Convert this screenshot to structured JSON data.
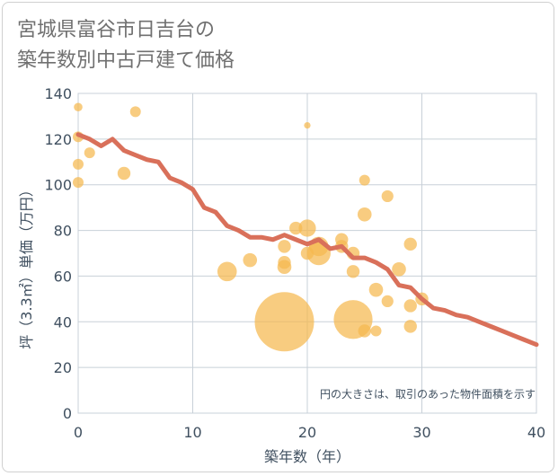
{
  "chart_data": {
    "type": "scatter",
    "title_lines": [
      "宮城県富谷市日吉台の",
      "築年数別中古戸建て価格"
    ],
    "xlabel": "築年数（年）",
    "ylabel": "坪（3.3㎡）単価（万円）",
    "xlim": [
      0,
      40
    ],
    "ylim": [
      0,
      140
    ],
    "x_ticks": [
      0,
      10,
      20,
      30,
      40
    ],
    "y_ticks": [
      0,
      20,
      40,
      60,
      80,
      100,
      120,
      140
    ],
    "note": "円の大きさは、取引のあった物件面積を示す",
    "grid": true,
    "colors": {
      "bubble": "#f5b94f",
      "line": "#d9705a",
      "grid": "#c8d0d8",
      "text": "#405060"
    },
    "bubbles": [
      {
        "x": 0,
        "y": 134,
        "size": 8
      },
      {
        "x": 0,
        "y": 121,
        "size": 10
      },
      {
        "x": 0,
        "y": 109,
        "size": 10
      },
      {
        "x": 0,
        "y": 101,
        "size": 10
      },
      {
        "x": 1,
        "y": 114,
        "size": 10
      },
      {
        "x": 4,
        "y": 105,
        "size": 12
      },
      {
        "x": 5,
        "y": 132,
        "size": 10
      },
      {
        "x": 13,
        "y": 62,
        "size": 18
      },
      {
        "x": 15,
        "y": 67,
        "size": 13
      },
      {
        "x": 18,
        "y": 73,
        "size": 12
      },
      {
        "x": 18,
        "y": 66,
        "size": 12
      },
      {
        "x": 18,
        "y": 64,
        "size": 13
      },
      {
        "x": 18,
        "y": 40,
        "size": 55
      },
      {
        "x": 19,
        "y": 81,
        "size": 12
      },
      {
        "x": 20,
        "y": 126,
        "size": 6
      },
      {
        "x": 20,
        "y": 81,
        "size": 16
      },
      {
        "x": 20,
        "y": 70,
        "size": 12
      },
      {
        "x": 21,
        "y": 73,
        "size": 18
      },
      {
        "x": 21,
        "y": 70,
        "size": 22
      },
      {
        "x": 23,
        "y": 76,
        "size": 12
      },
      {
        "x": 23,
        "y": 73,
        "size": 12
      },
      {
        "x": 24,
        "y": 70,
        "size": 12
      },
      {
        "x": 24,
        "y": 62,
        "size": 12
      },
      {
        "x": 24,
        "y": 41,
        "size": 36
      },
      {
        "x": 25,
        "y": 102,
        "size": 10
      },
      {
        "x": 25,
        "y": 87,
        "size": 13
      },
      {
        "x": 25,
        "y": 36,
        "size": 12
      },
      {
        "x": 26,
        "y": 54,
        "size": 13
      },
      {
        "x": 26,
        "y": 36,
        "size": 10
      },
      {
        "x": 27,
        "y": 95,
        "size": 11
      },
      {
        "x": 27,
        "y": 49,
        "size": 11
      },
      {
        "x": 28,
        "y": 63,
        "size": 13
      },
      {
        "x": 29,
        "y": 74,
        "size": 12
      },
      {
        "x": 29,
        "y": 47,
        "size": 12
      },
      {
        "x": 29,
        "y": 38,
        "size": 12
      },
      {
        "x": 30,
        "y": 50,
        "size": 12
      }
    ],
    "trend": {
      "x": [
        0,
        1,
        2,
        3,
        4,
        5,
        6,
        7,
        8,
        9,
        10,
        11,
        12,
        13,
        14,
        15,
        16,
        17,
        18,
        19,
        20,
        21,
        22,
        23,
        24,
        25,
        26,
        27,
        28,
        29,
        30,
        31,
        32,
        33,
        34,
        35,
        36,
        37,
        38,
        39,
        40
      ],
      "y": [
        122,
        120,
        117,
        120,
        115,
        113,
        111,
        110,
        103,
        101,
        98,
        90,
        88,
        82,
        80,
        77,
        77,
        76,
        78,
        76,
        74,
        76,
        72,
        73,
        68,
        68,
        66,
        63,
        56,
        55,
        50,
        46,
        45,
        43,
        42,
        40,
        38,
        36,
        34,
        32,
        30
      ]
    }
  }
}
